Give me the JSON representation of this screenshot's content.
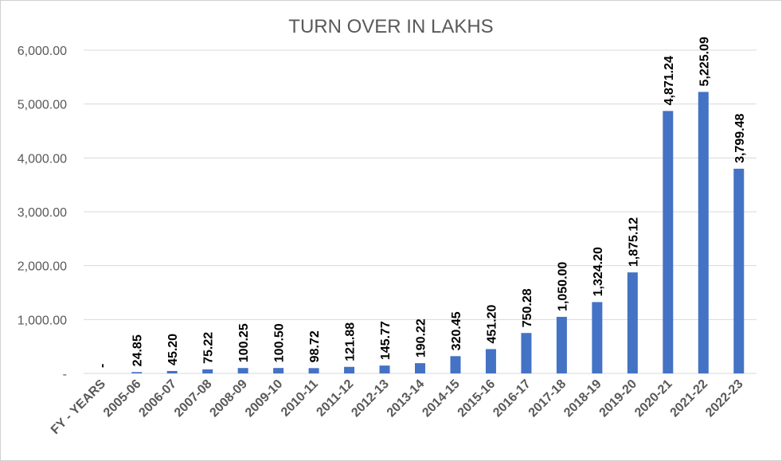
{
  "chart_data": {
    "type": "bar",
    "title": "TURN OVER IN LAKHS",
    "xlabel": "",
    "ylabel": "",
    "ylim": [
      0,
      6000
    ],
    "grid": true,
    "legend": "none",
    "bar_color": "#4472c4",
    "yticks": [
      0,
      1000,
      2000,
      3000,
      4000,
      5000,
      6000
    ],
    "ytick_labels": [
      "-",
      "1,000.00",
      "2,000.00",
      "3,000.00",
      "4,000.00",
      "5,000.00",
      "6,000.00"
    ],
    "categories": [
      "FY - YEARS",
      "2005-06",
      "2006-07",
      "2007-08",
      "2008-09",
      "2009-10",
      "2010-11",
      "2011-12",
      "2012-13",
      "2013-14",
      "2014-15",
      "2015-16",
      "2016-17",
      "2017-18",
      "2018-19",
      "2019-20",
      "2020-21",
      "2021-22",
      "2022-23"
    ],
    "values": [
      0,
      24.85,
      45.2,
      75.22,
      100.25,
      100.5,
      98.72,
      121.88,
      145.77,
      190.22,
      320.45,
      451.2,
      750.28,
      1050.0,
      1324.2,
      1875.12,
      4871.24,
      5225.09,
      3799.48
    ],
    "data_labels": [
      "-",
      "24.85",
      "45.20",
      "75.22",
      "100.25",
      "100.50",
      "98.72",
      "121.88",
      "145.77",
      "190.22",
      "320.45",
      "451.20",
      "750.28",
      "1,050.00",
      "1,324.20",
      "1,875.12",
      "4,871.24",
      "5,225.09",
      "3,799.48"
    ]
  }
}
